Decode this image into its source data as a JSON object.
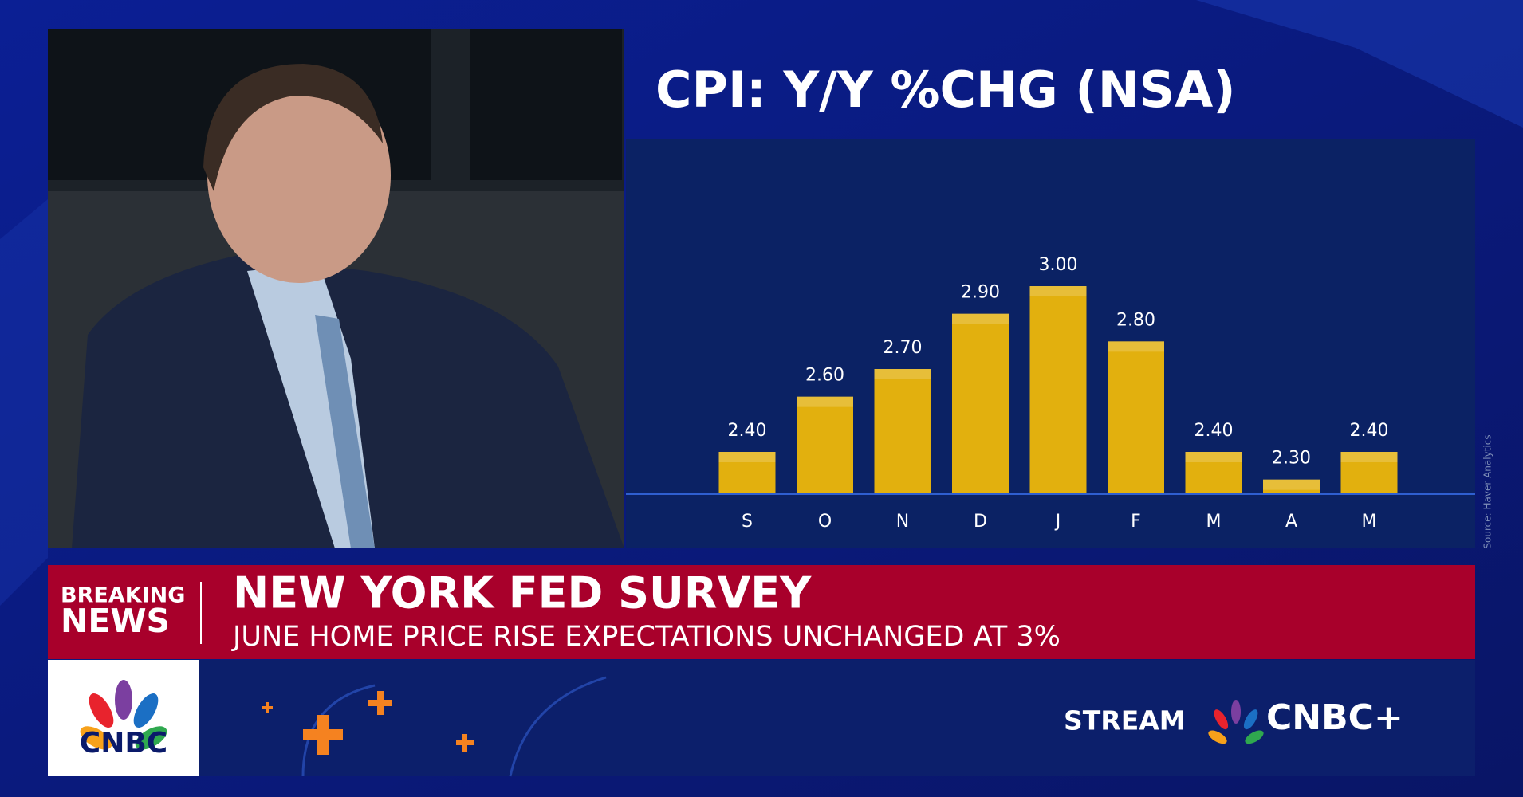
{
  "chart_data": {
    "type": "bar",
    "title": "CPI: Y/Y %CHG (NSA)",
    "categories": [
      "S",
      "O",
      "N",
      "D",
      "J",
      "F",
      "M",
      "A",
      "M"
    ],
    "values": [
      2.4,
      2.6,
      2.7,
      2.9,
      3.0,
      2.8,
      2.4,
      2.3,
      2.4
    ],
    "value_labels": [
      "2.40",
      "2.60",
      "2.70",
      "2.90",
      "3.00",
      "2.80",
      "2.40",
      "2.30",
      "2.40"
    ],
    "color": "#e2b00e",
    "ylim": [
      2.25,
      3.0
    ],
    "source": "Source: Haver Analytics"
  },
  "banner": {
    "tag_top": "BREAKING",
    "tag_bottom": "NEWS",
    "headline": "NEW YORK FED SURVEY",
    "subheadline": "JUNE HOME PRICE RISE EXPECTATIONS UNCHANGED AT 3%"
  },
  "footer": {
    "logo": "CNBC",
    "stream": "STREAM",
    "brand": "CNBC+"
  }
}
